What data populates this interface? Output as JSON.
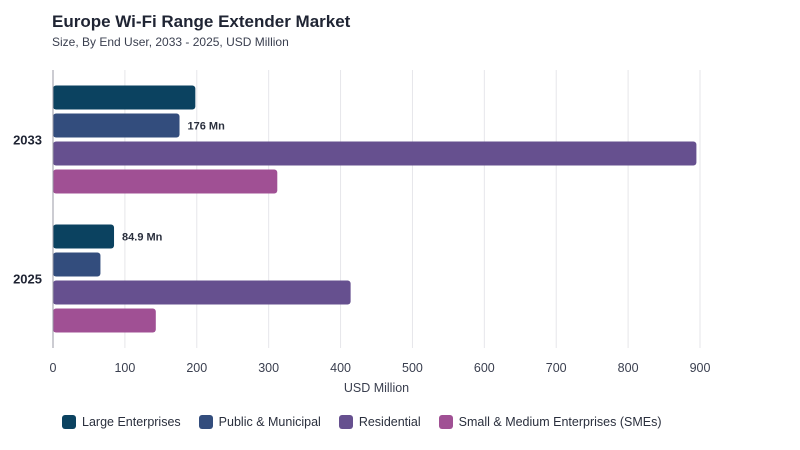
{
  "header": {
    "title": "Europe Wi-Fi Range Extender Market",
    "subtitle": "Size, By End User, 2033 - 2025, USD Million"
  },
  "chart_data": {
    "type": "bar",
    "orientation": "horizontal",
    "categories": [
      "2033",
      "2025"
    ],
    "series": [
      {
        "name": "Large Enterprises",
        "color": "#0b4260",
        "values": [
          198,
          84.9
        ]
      },
      {
        "name": "Public & Municipal",
        "color": "#334d7d",
        "values": [
          176,
          66
        ]
      },
      {
        "name": "Residential",
        "color": "#66508f",
        "values": [
          895,
          414
        ]
      },
      {
        "name": "Small & Medium Enterprises (SMEs)",
        "color": "#a05094",
        "values": [
          312,
          143
        ]
      }
    ],
    "data_labels": [
      {
        "category": "2033",
        "series": "Public & Municipal",
        "text": "176 Mn"
      },
      {
        "category": "2025",
        "series": "Large Enterprises",
        "text": "84.9 Mn"
      }
    ],
    "xlabel": "USD Million",
    "ylabel": "",
    "xlim": [
      0,
      900
    ],
    "xticks": [
      0,
      100,
      200,
      300,
      400,
      500,
      600,
      700,
      800,
      900
    ],
    "grid": true,
    "legend_position": "bottom-left"
  }
}
